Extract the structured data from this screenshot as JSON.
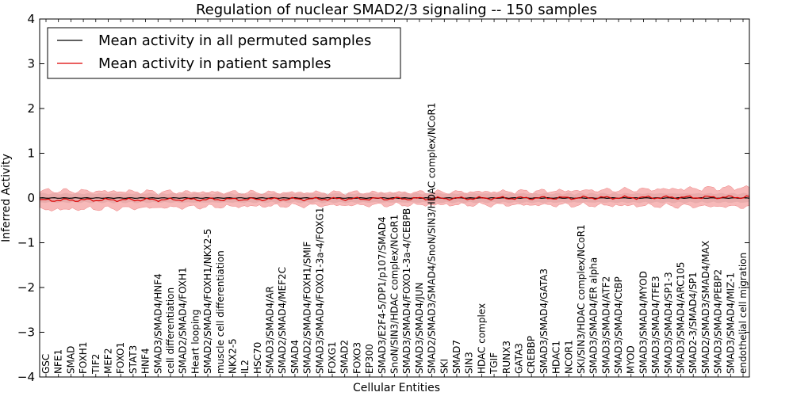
{
  "chart_data": {
    "type": "line",
    "title": "Regulation of nuclear SMAD2/3 signaling -- 150 samples",
    "xlabel": "Cellular Entities",
    "ylabel": "Inferred Activity",
    "ylim": [
      -4,
      4
    ],
    "yticks": [
      -4,
      -3,
      -2,
      -1,
      0,
      1,
      2,
      3,
      4
    ],
    "legend_position": "top-left",
    "series": [
      {
        "name": "Mean activity in all permuted samples",
        "color": "#000000",
        "band_color": "#c0c0c0"
      },
      {
        "name": "Mean activity in patient samples",
        "color": "#dd0000",
        "band_color": "#f08080"
      }
    ],
    "mean_permuted": 0.0,
    "mean_patient_start": -0.05,
    "mean_patient_end": 0.02,
    "band_halfwidth_patient": 0.22,
    "band_halfwidth_permuted": 0.1,
    "entities": [
      "GSC",
      "NFE1",
      "SMAD",
      "FOXH1",
      "TIF2",
      "MEF2",
      "FOXO1",
      "STAT3",
      "HNF4",
      "SMAD3/SMAD4/HNF4",
      "cell differentiation",
      "SMAD2/SMAD4/FOXH1",
      "Heart looping",
      "SMAD2/SMAD4/FOXH1/NKX2-5",
      "muscle cell differentiation",
      "NKX2-5",
      "IL2",
      "HSC70",
      "SMAD3/SMAD4/AR",
      "SMAD2/SMAD4/MEF2C",
      "SMAD4",
      "SMAD2/SMAD4/FOXH1/SMIF",
      "SMAD3/SMAD4/FOXO1-3a-4/FOXG1",
      "FOXG1",
      "SMAD2",
      "FOXO3",
      "EP300",
      "SMAD3/E2F4-5/DP1/p107/SMAD4",
      "SnoN/SIN3/HDAC complex/NCoR1",
      "SMAD3/SMAD4/FOXO1-3a-4/CEBPB",
      "SMAD3/SMAD4/JUN",
      "SMAD2/SMAD3/SMAD4/SnoN/SIN3/HDAC complex/NCoR1",
      "SKI",
      "SMAD7",
      "SIN3",
      "HDAC complex",
      "TGIF",
      "RUNX3",
      "GATA3",
      "CREBBP",
      "SMAD3/SMAD4/GATA3",
      "HDAC1",
      "NCOR1",
      "SKI/SIN3/HDAC complex/NCoR1",
      "SMAD3/SMAD4/ER alpha",
      "SMAD3/SMAD4/ATF2",
      "SMAD3/SMAD4/CtBP",
      "MYOD",
      "SMAD3/SMAD4/MYOD",
      "SMAD3/SMAD4/TFE3",
      "SMAD3/SMAD4/SP1-3",
      "SMAD3/SMAD4/ARC105",
      "SMAD2-3/SMAD4/SP1",
      "SMAD2/SMAD3/SMAD4/MAX",
      "SMAD3/SMAD4/PEBP2",
      "SMAD3/SMAD4/MIZ-1",
      "endothelial cell migration"
    ]
  }
}
